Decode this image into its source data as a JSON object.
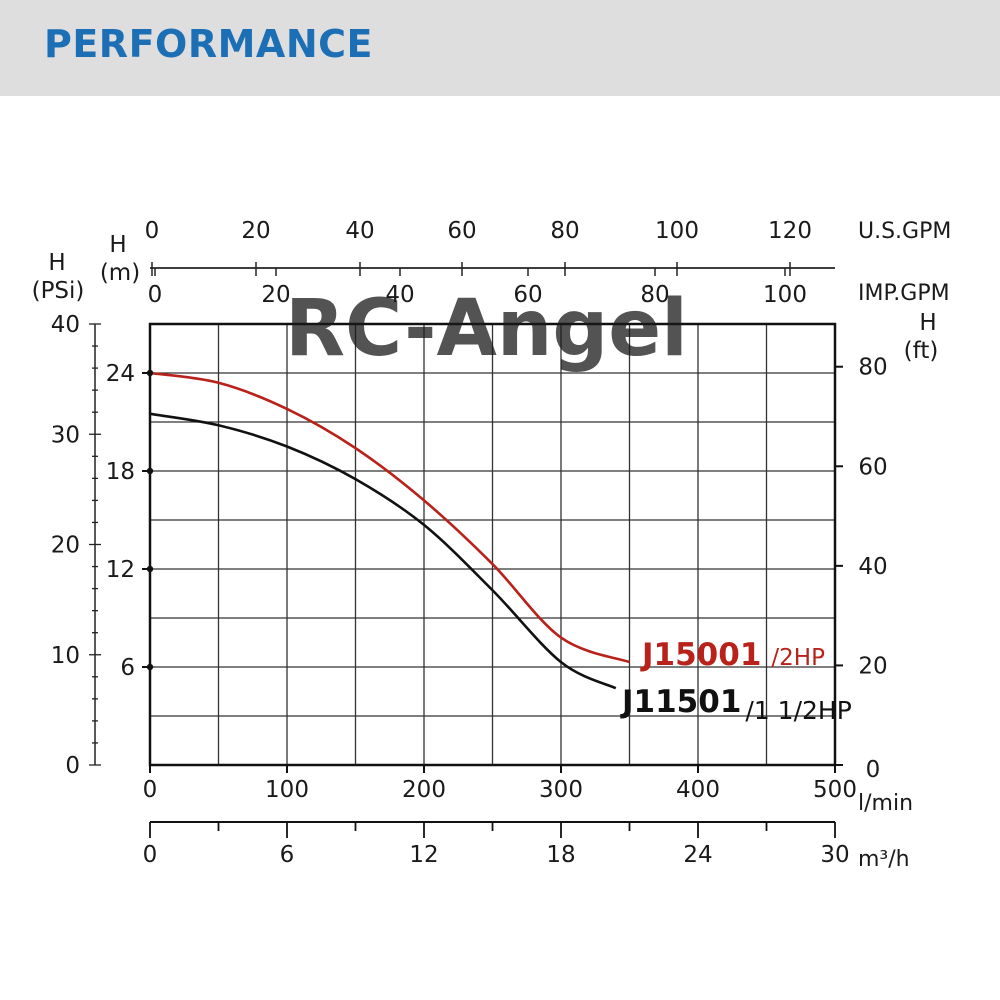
{
  "header": {
    "title": "PERFORMANCE"
  },
  "watermark": "RC-Angel",
  "colors": {
    "series_1": "#b8221b",
    "series_2": "#111111",
    "header_bg": "#dedede",
    "header_text": "#1c6fb5"
  },
  "chart_data": {
    "type": "line",
    "grid": true,
    "x": {
      "label": "l/min",
      "range": [
        0,
        500
      ],
      "ticks": [
        0,
        100,
        200,
        300,
        400,
        500
      ]
    },
    "x_secondary": {
      "label": "m³/h",
      "range": [
        0,
        30
      ],
      "ticks": [
        0,
        6,
        12,
        18,
        24,
        30
      ]
    },
    "x_top_1": {
      "label": "U.S.GPM",
      "ticks": [
        0,
        20,
        40,
        60,
        80,
        100,
        120
      ]
    },
    "x_top_2": {
      "label": "IMP.GPM",
      "ticks": [
        0,
        20,
        40,
        60,
        80,
        100
      ]
    },
    "y": {
      "label": "H (m)",
      "range": [
        0,
        27
      ],
      "ticks": [
        6,
        12,
        18,
        24
      ]
    },
    "y_psi": {
      "label": "H (PSi)",
      "ticks": [
        0,
        10,
        20,
        30,
        40
      ]
    },
    "y_ft": {
      "label": "H (ft)",
      "ticks": [
        0,
        20,
        40,
        60,
        80
      ]
    },
    "series": [
      {
        "name": "J15001",
        "rating": "/2HP",
        "x": [
          0,
          50,
          100,
          150,
          200,
          250,
          300,
          350
        ],
        "y": [
          24.0,
          23.4,
          21.8,
          19.4,
          16.2,
          12.3,
          7.8,
          6.3
        ]
      },
      {
        "name": "J11501",
        "rating": "/1 1/2HP",
        "x": [
          0,
          50,
          100,
          150,
          200,
          250,
          300,
          340
        ],
        "y": [
          21.5,
          20.8,
          19.5,
          17.5,
          14.7,
          10.7,
          6.3,
          4.7
        ]
      }
    ]
  }
}
